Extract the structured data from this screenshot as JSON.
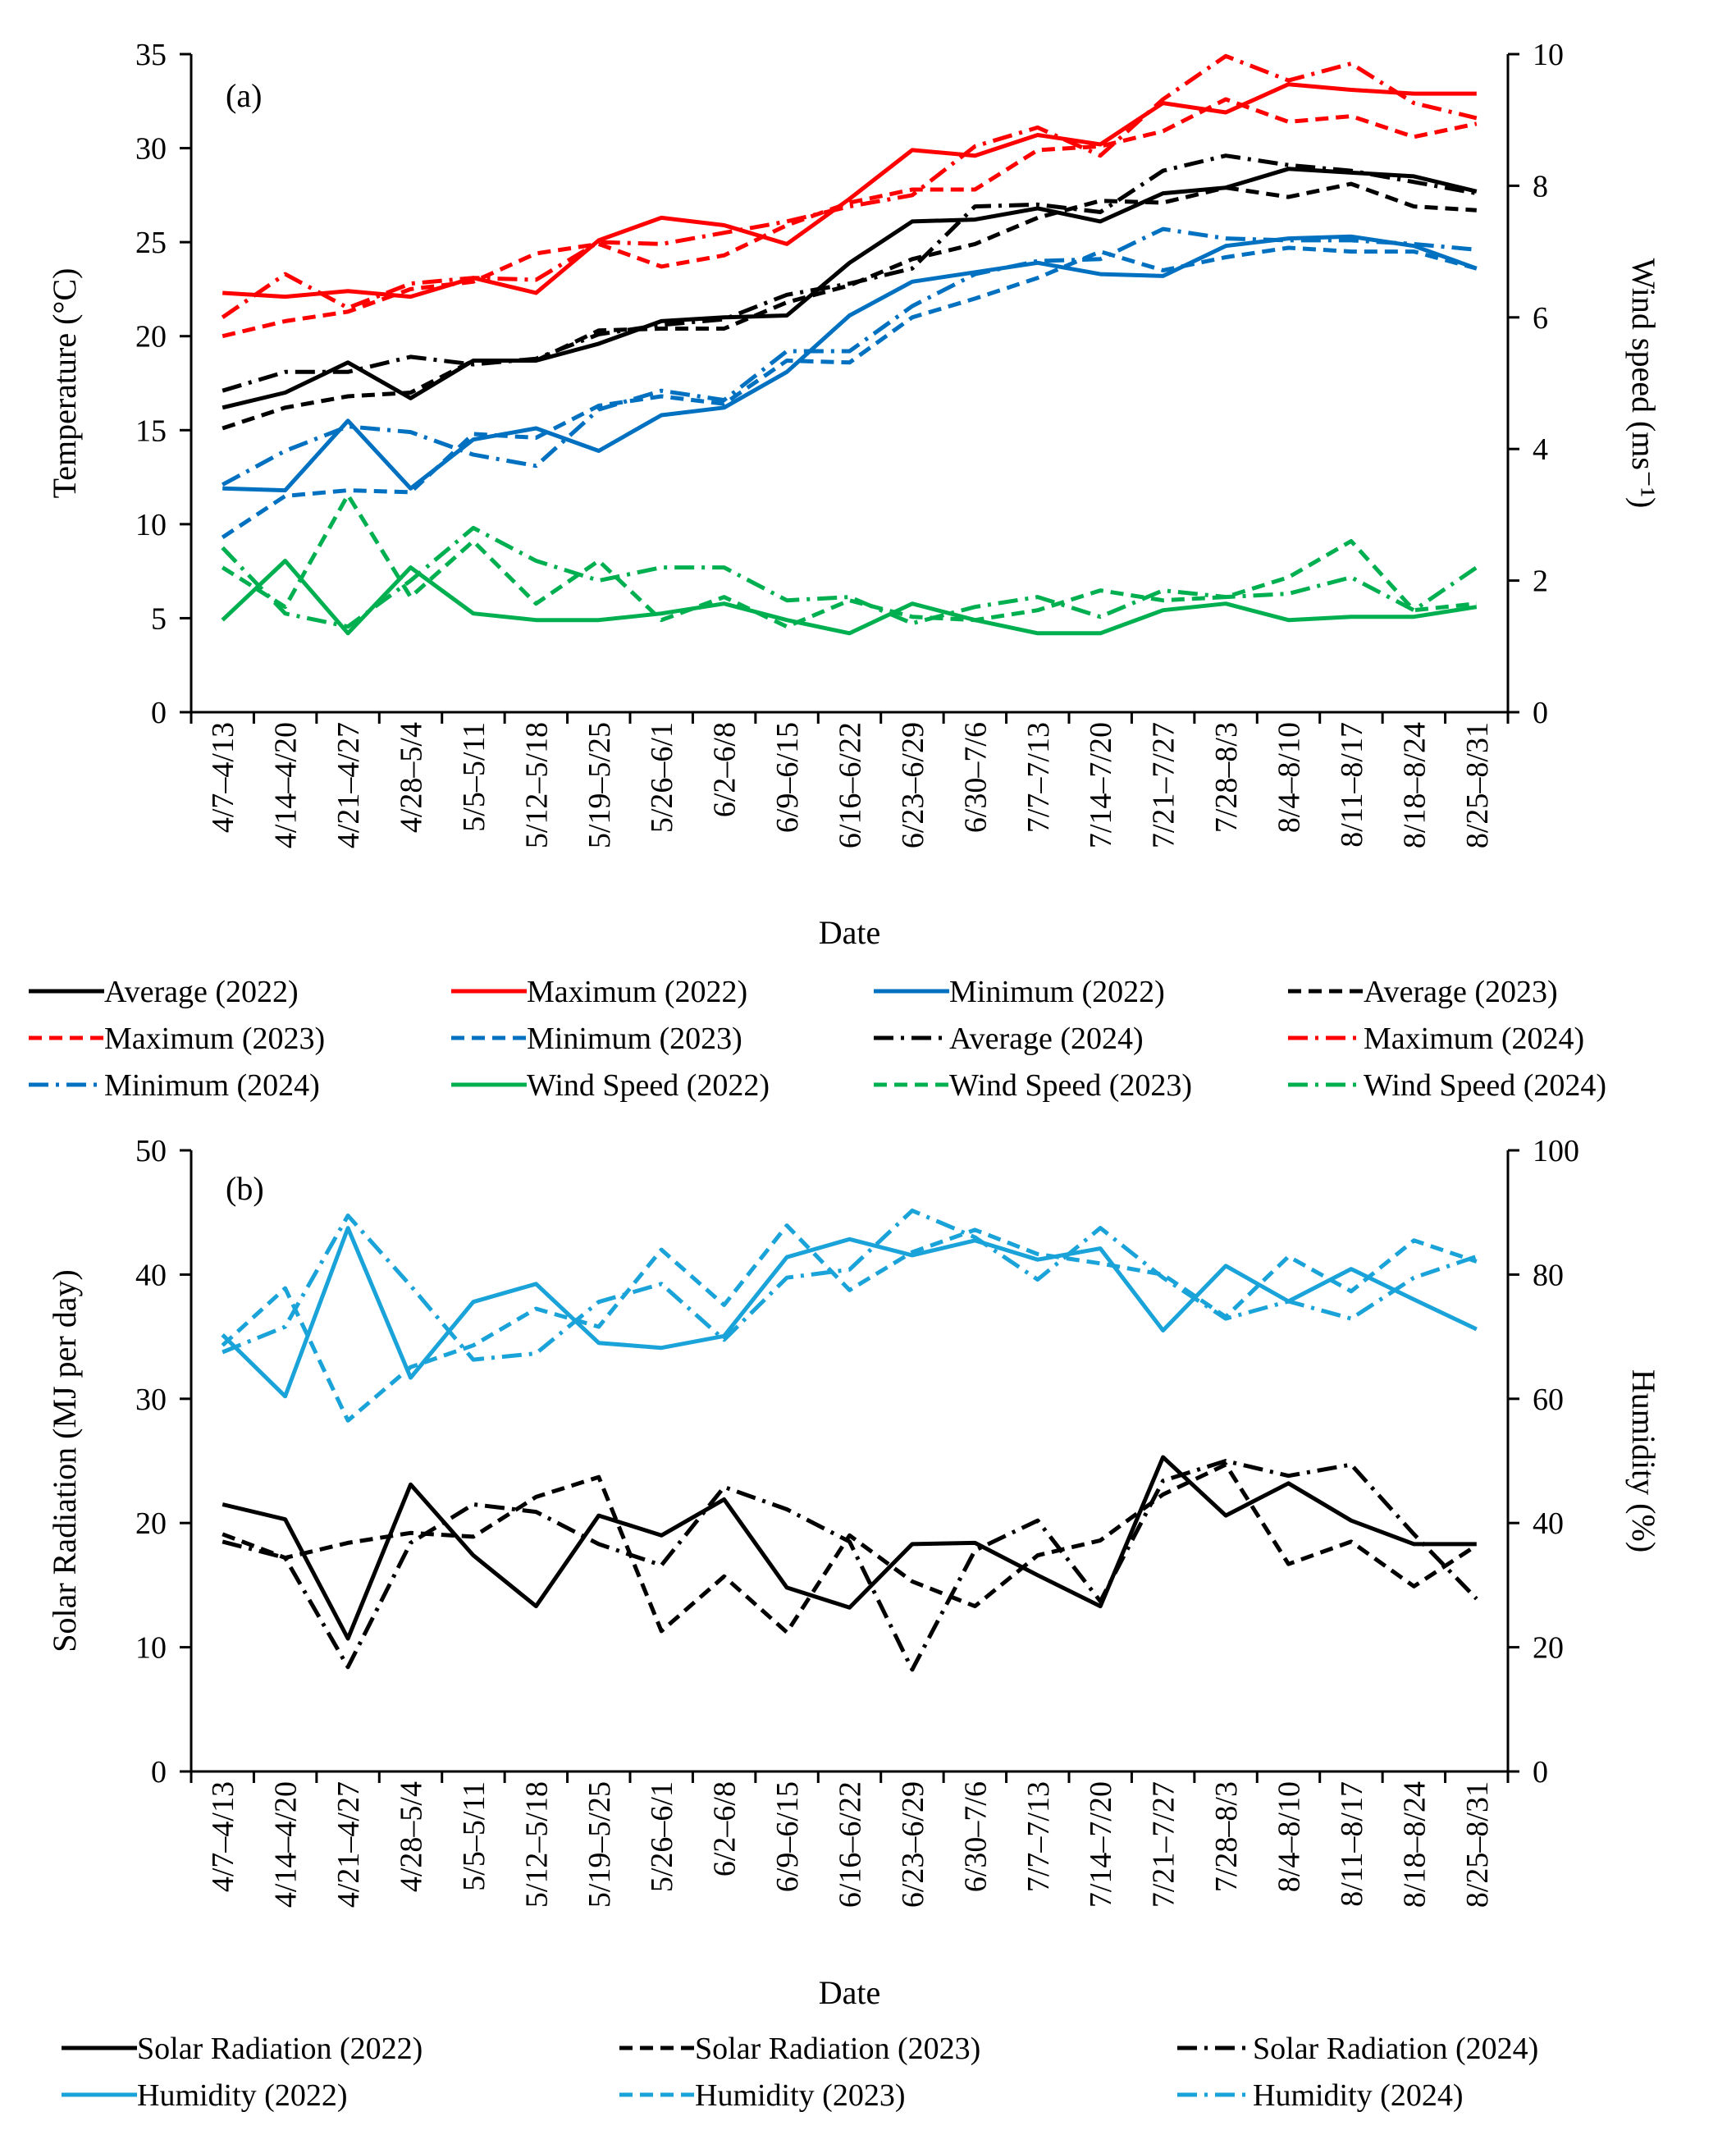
{
  "chart_data": [
    {
      "id": "a",
      "type": "line",
      "panel_label": "(a)",
      "xlabel": "Date",
      "ylabel": "Temperature (°C)",
      "y2label": "Wind speed (ms⁻¹)",
      "ylim": [
        0,
        35
      ],
      "y2lim": [
        0,
        10
      ],
      "yticks": [
        "0",
        "5",
        "10",
        "15",
        "20",
        "25",
        "30",
        "35"
      ],
      "y2ticks": [
        "0",
        "2",
        "4",
        "6",
        "8",
        "10"
      ],
      "categories": [
        "4/7–4/13",
        "4/14–4/20",
        "4/21–4/27",
        "4/28–5/4",
        "5/5–5/11",
        "5/12–5/18",
        "5/19–5/25",
        "5/26–6/1",
        "6/2–6/8",
        "6/9–6/15",
        "6/16–6/22",
        "6/23–6/29",
        "6/30–7/6",
        "7/7–7/13",
        "7/14–7/20",
        "7/21–7/27",
        "7/28–8/3",
        "8/4–8/10",
        "8/11–8/17",
        "8/18–8/24",
        "8/25–8/31"
      ],
      "series": [
        {
          "name": "Average (2022)",
          "axis": "left",
          "color": "#000000",
          "dash": "solid",
          "values": [
            16.2,
            17.0,
            18.6,
            16.7,
            18.7,
            18.7,
            19.6,
            20.8,
            21.0,
            21.1,
            23.9,
            26.1,
            26.2,
            26.8,
            26.1,
            27.6,
            27.9,
            28.9,
            28.7,
            28.5,
            27.7
          ]
        },
        {
          "name": "Maximum (2022)",
          "axis": "left",
          "color": "#ff0000",
          "dash": "solid",
          "values": [
            22.3,
            22.1,
            22.4,
            22.1,
            23.1,
            22.3,
            25.1,
            26.3,
            25.9,
            24.9,
            27.3,
            29.9,
            29.6,
            30.7,
            30.2,
            32.4,
            31.9,
            33.4,
            33.1,
            32.9,
            32.9
          ]
        },
        {
          "name": "Minimum (2022)",
          "axis": "left",
          "color": "#0070c0",
          "dash": "solid",
          "values": [
            11.9,
            11.8,
            15.5,
            11.9,
            14.5,
            15.1,
            13.9,
            15.8,
            16.2,
            18.1,
            21.1,
            22.9,
            23.4,
            23.9,
            23.3,
            23.2,
            24.8,
            25.2,
            25.3,
            24.8,
            23.6
          ]
        },
        {
          "name": "Average (2023)",
          "axis": "left",
          "color": "#000000",
          "dash": "dash",
          "values": [
            15.1,
            16.2,
            16.8,
            17.0,
            18.7,
            18.7,
            20.3,
            20.4,
            20.4,
            21.8,
            22.7,
            24.1,
            24.9,
            26.3,
            27.2,
            27.1,
            27.9,
            27.4,
            28.1,
            26.9,
            26.7
          ]
        },
        {
          "name": "Maximum (2023)",
          "axis": "left",
          "color": "#ff0000",
          "dash": "dash",
          "values": [
            20.0,
            20.8,
            21.3,
            22.5,
            22.9,
            24.4,
            24.9,
            23.7,
            24.3,
            25.9,
            27.1,
            27.8,
            27.8,
            29.9,
            30.1,
            30.9,
            32.6,
            31.4,
            31.7,
            30.6,
            31.3
          ]
        },
        {
          "name": "Minimum (2023)",
          "axis": "left",
          "color": "#0070c0",
          "dash": "dash",
          "values": [
            9.3,
            11.5,
            11.8,
            11.7,
            14.8,
            14.6,
            16.3,
            16.8,
            16.4,
            18.7,
            18.6,
            21.0,
            22.0,
            23.1,
            24.5,
            23.5,
            24.2,
            24.7,
            24.5,
            24.5,
            23.6
          ]
        },
        {
          "name": "Average (2024)",
          "axis": "left",
          "color": "#000000",
          "dash": "dashdot",
          "values": [
            17.1,
            18.1,
            18.1,
            18.9,
            18.5,
            18.8,
            20.1,
            20.6,
            20.9,
            22.2,
            22.8,
            23.6,
            26.9,
            27.0,
            26.6,
            28.8,
            29.6,
            29.1,
            28.8,
            28.2,
            27.6
          ]
        },
        {
          "name": "Maximum (2024)",
          "axis": "left",
          "color": "#ff0000",
          "dash": "dashdot",
          "values": [
            21.0,
            23.3,
            21.5,
            22.8,
            23.1,
            23.0,
            25.0,
            24.9,
            25.5,
            26.1,
            26.9,
            27.5,
            30.1,
            31.1,
            29.6,
            32.6,
            34.9,
            33.6,
            34.5,
            32.4,
            31.6
          ]
        },
        {
          "name": "Minimum (2024)",
          "axis": "left",
          "color": "#0070c0",
          "dash": "dashdot",
          "values": [
            12.1,
            13.9,
            15.2,
            14.9,
            13.7,
            13.1,
            16.1,
            17.1,
            16.6,
            19.2,
            19.2,
            21.6,
            23.3,
            24.0,
            24.1,
            25.7,
            25.2,
            25.1,
            25.1,
            24.9,
            24.6
          ]
        },
        {
          "name": "Wind Speed (2022)",
          "axis": "right",
          "color": "#00b050",
          "dash": "solid",
          "values": [
            1.4,
            2.3,
            1.2,
            2.2,
            1.5,
            1.4,
            1.4,
            1.5,
            1.65,
            1.4,
            1.2,
            1.65,
            1.4,
            1.2,
            1.2,
            1.55,
            1.65,
            1.4,
            1.45,
            1.45,
            1.6
          ]
        },
        {
          "name": "Wind Speed (2023)",
          "axis": "right",
          "color": "#00b050",
          "dash": "dash",
          "values": [
            2.2,
            1.6,
            3.3,
            1.75,
            2.6,
            1.65,
            2.3,
            1.4,
            1.75,
            1.3,
            1.7,
            1.45,
            1.4,
            1.55,
            1.85,
            1.7,
            1.75,
            2.05,
            2.6,
            1.55,
            1.65
          ]
        },
        {
          "name": "Wind Speed (2024)",
          "axis": "right",
          "color": "#00b050",
          "dash": "dashdot",
          "values": [
            2.5,
            1.5,
            1.3,
            2.0,
            2.8,
            2.3,
            2.0,
            2.2,
            2.2,
            1.7,
            1.75,
            1.35,
            1.6,
            1.75,
            1.45,
            1.85,
            1.75,
            1.8,
            2.05,
            1.55,
            2.2
          ]
        }
      ]
    },
    {
      "id": "b",
      "type": "line",
      "panel_label": "(b)",
      "xlabel": "Date",
      "ylabel": "Solar Radiation (MJ per day)",
      "y2label": "Humidity (%)",
      "ylim": [
        0,
        50
      ],
      "y2lim": [
        0,
        100
      ],
      "yticks": [
        "0",
        "10",
        "20",
        "30",
        "40",
        "50"
      ],
      "y2ticks": [
        "0",
        "20",
        "40",
        "60",
        "80",
        "100"
      ],
      "categories": [
        "4/7–4/13",
        "4/14–4/20",
        "4/21–4/27",
        "4/28–5/4",
        "5/5–5/11",
        "5/12–5/18",
        "5/19–5/25",
        "5/26–6/1",
        "6/2–6/8",
        "6/9–6/15",
        "6/16–6/22",
        "6/23–6/29",
        "6/30–7/6",
        "7/7–7/13",
        "7/14–7/20",
        "7/21–7/27",
        "7/28–8/3",
        "8/4–8/10",
        "8/11–8/17",
        "8/18–8/24",
        "8/25–8/31"
      ],
      "series": [
        {
          "name": "Solar Radiation (2022)",
          "axis": "left",
          "color": "#000000",
          "dash": "solid",
          "values": [
            21.5,
            20.3,
            10.7,
            23.1,
            17.4,
            13.3,
            20.6,
            19.0,
            21.9,
            14.8,
            13.2,
            18.3,
            18.4,
            15.8,
            13.3,
            25.3,
            20.6,
            23.2,
            20.2,
            18.3,
            18.3
          ]
        },
        {
          "name": "Solar Radiation (2023)",
          "axis": "left",
          "color": "#000000",
          "dash": "dash",
          "values": [
            19.1,
            17.2,
            18.4,
            19.2,
            18.9,
            22.1,
            23.7,
            11.3,
            15.7,
            11.2,
            19.0,
            15.3,
            13.3,
            17.4,
            18.6,
            22.3,
            24.7,
            16.7,
            18.5,
            14.9,
            18.2
          ]
        },
        {
          "name": "Solar Radiation (2024)",
          "axis": "left",
          "color": "#000000",
          "dash": "dashdot",
          "values": [
            18.5,
            17.2,
            8.4,
            18.4,
            21.5,
            20.9,
            18.3,
            16.6,
            22.9,
            21.1,
            18.5,
            8.2,
            17.8,
            20.2,
            13.7,
            23.4,
            25.0,
            23.8,
            24.7,
            19.1,
            13.9
          ]
        },
        {
          "name": "Humidity (2022)",
          "axis": "right",
          "color": "#1aa3d9",
          "dash": "solid",
          "values": [
            70.3,
            60.4,
            87.5,
            63.4,
            75.6,
            78.5,
            69.0,
            68.2,
            70.1,
            82.8,
            85.7,
            83.1,
            85.5,
            82.4,
            84.2,
            71.0,
            81.4,
            75.7,
            80.9,
            76.0,
            71.2
          ]
        },
        {
          "name": "Humidity (2023)",
          "axis": "right",
          "color": "#1aa3d9",
          "dash": "dash",
          "values": [
            68.6,
            77.8,
            56.5,
            65.1,
            68.6,
            74.5,
            71.6,
            84.0,
            75.1,
            87.9,
            77.5,
            83.6,
            87.2,
            83.3,
            81.8,
            80.0,
            73.2,
            82.9,
            77.3,
            85.5,
            82.1
          ]
        },
        {
          "name": "Humidity (2024)",
          "axis": "right",
          "color": "#1aa3d9",
          "dash": "dashdot",
          "values": [
            67.5,
            71.6,
            89.5,
            78.2,
            66.3,
            67.3,
            75.6,
            78.5,
            69.5,
            79.5,
            80.8,
            90.3,
            86.0,
            79.2,
            87.5,
            79.5,
            72.9,
            75.7,
            72.9,
            79.5,
            82.9
          ]
        }
      ]
    }
  ]
}
